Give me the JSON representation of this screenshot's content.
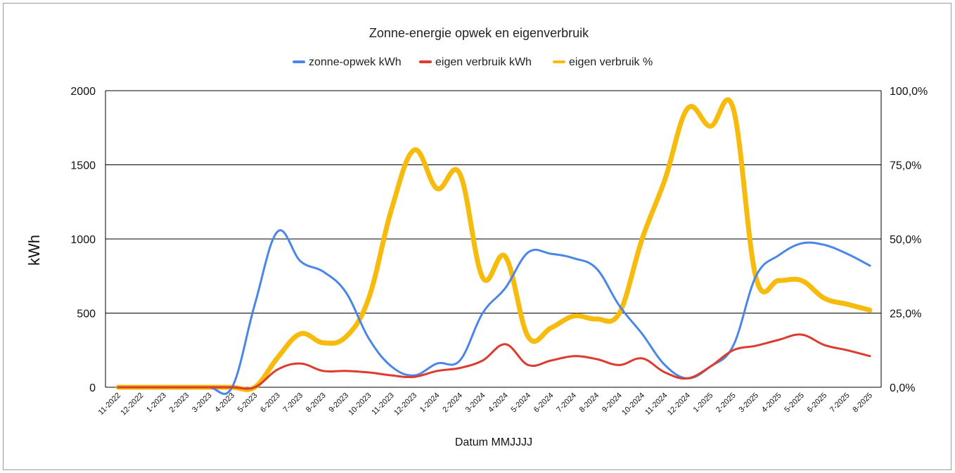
{
  "chart_data": {
    "type": "line",
    "title": "Zonne-energie opwek en eigenverbruik",
    "xlabel": "Datum MMJJJJ",
    "ylabel": "kWh",
    "ylabel_right": "",
    "categories": [
      "11-2022",
      "12-2022",
      "1-2023",
      "2-2023",
      "3-2023",
      "4-2023",
      "5-2023",
      "6-2023",
      "7-2023",
      "8-2023",
      "9-2023",
      "10-2023",
      "11-2023",
      "12-2023",
      "1-2024",
      "2-2024",
      "3-2024",
      "4-2024",
      "5-2024",
      "6-2024",
      "7-2024",
      "8-2024",
      "9-2024",
      "10-2024",
      "11-2024",
      "12-2024",
      "1-2025",
      "2-2025",
      "3-2025",
      "4-2025",
      "5-2025",
      "6-2025",
      "7-2025",
      "8-2025"
    ],
    "ylim": [
      0,
      2000
    ],
    "yticks": [
      "0",
      "500",
      "1000",
      "1500",
      "2000"
    ],
    "ylim_right": [
      0,
      1
    ],
    "yticks_right": [
      "0,0%",
      "25,0%",
      "50,0%",
      "75,0%",
      "100,0%"
    ],
    "legend_position": "top",
    "grid": true,
    "series": [
      {
        "name": "zonne-opwek kWh",
        "axis": "left",
        "color": "#4a86e8",
        "values": [
          0,
          0,
          0,
          0,
          0,
          0,
          560,
          1050,
          850,
          780,
          640,
          330,
          140,
          80,
          160,
          180,
          500,
          670,
          910,
          900,
          870,
          800,
          550,
          360,
          150,
          60,
          140,
          280,
          750,
          890,
          970,
          960,
          900,
          820
        ]
      },
      {
        "name": "eigen verbruik kWh",
        "axis": "left",
        "color": "#dc3b2e",
        "values": [
          0,
          0,
          0,
          0,
          0,
          0,
          0,
          120,
          160,
          110,
          110,
          100,
          80,
          70,
          110,
          130,
          180,
          290,
          150,
          180,
          210,
          190,
          150,
          195,
          100,
          60,
          140,
          250,
          280,
          320,
          355,
          285,
          250,
          210
        ]
      },
      {
        "name": "eigen verbruik %",
        "axis": "right",
        "color": "#f6bb0d",
        "values": [
          0,
          0,
          0,
          0,
          0,
          0,
          0,
          0.1,
          0.18,
          0.15,
          0.17,
          0.3,
          0.6,
          0.8,
          0.67,
          0.72,
          0.37,
          0.44,
          0.17,
          0.2,
          0.24,
          0.23,
          0.25,
          0.5,
          0.7,
          0.94,
          0.88,
          0.94,
          0.37,
          0.36,
          0.36,
          0.3,
          0.28,
          0.26
        ]
      }
    ]
  }
}
